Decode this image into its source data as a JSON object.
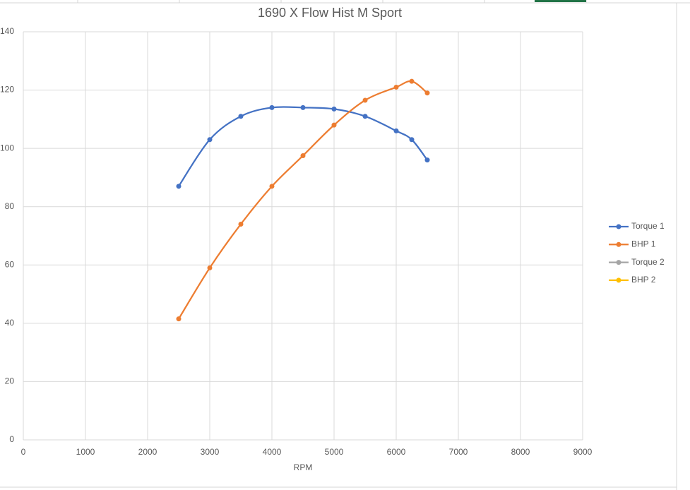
{
  "chart_data": {
    "type": "line",
    "title": "1690 X Flow Hist M Sport",
    "x_label": "RPM",
    "x": [
      2500,
      3000,
      3500,
      4000,
      4500,
      5000,
      5500,
      6000,
      6250,
      6500
    ],
    "series": [
      {
        "name": "Torque 1",
        "color": "#4472c4",
        "values": [
          87,
          103,
          111,
          114,
          114,
          113.5,
          111,
          106,
          103,
          96
        ]
      },
      {
        "name": "BHP 1",
        "color": "#ed7d31",
        "values": [
          41.5,
          59,
          74,
          87,
          97.5,
          108,
          116.5,
          121,
          123,
          119
        ]
      },
      {
        "name": "Torque 2",
        "color": "#a5a5a5",
        "values": [
          null,
          null,
          null,
          null,
          null,
          null,
          null,
          null,
          null,
          null
        ]
      },
      {
        "name": "BHP 2",
        "color": "#ffc000",
        "values": [
          null,
          null,
          null,
          null,
          null,
          null,
          null,
          null,
          null,
          null
        ]
      }
    ],
    "xlim": [
      0,
      9000
    ],
    "xticks": [
      0,
      1000,
      2000,
      3000,
      4000,
      5000,
      6000,
      7000,
      8000,
      9000
    ],
    "ylim": [
      0,
      140
    ],
    "yticks": [
      0,
      20,
      40,
      60,
      80,
      100,
      120,
      140
    ],
    "grid": true,
    "smooth": true,
    "legend": "right"
  }
}
